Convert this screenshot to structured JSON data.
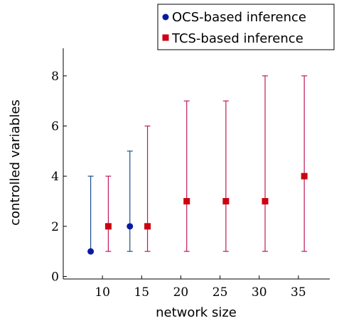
{
  "chart_data": {
    "type": "scatter",
    "xlabel": "network size",
    "ylabel": "controlled variables",
    "xlim": [
      5,
      39
    ],
    "ylim": [
      -0.1,
      9.1
    ],
    "x_ticks": [
      10,
      15,
      20,
      25,
      30,
      35
    ],
    "y_ticks": [
      0,
      2,
      4,
      6,
      8
    ],
    "grid": false,
    "legend_position": "top-right",
    "series": [
      {
        "name": "OCS-based inference",
        "marker": "circle",
        "color": "#0a1aa0",
        "bar_color": "#1f4e8c",
        "points": [
          {
            "x": 10,
            "y": 1,
            "min": 1,
            "max": 4
          },
          {
            "x": 15,
            "y": 2,
            "min": 1,
            "max": 5
          }
        ]
      },
      {
        "name": "TCS-based inference",
        "marker": "square",
        "color": "#cc0011",
        "bar_color": "#c2185b",
        "points": [
          {
            "x": 10,
            "y": 2,
            "min": 1,
            "max": 4
          },
          {
            "x": 15,
            "y": 2,
            "min": 1,
            "max": 6
          },
          {
            "x": 20,
            "y": 3,
            "min": 1,
            "max": 7
          },
          {
            "x": 25,
            "y": 3,
            "min": 1,
            "max": 7
          },
          {
            "x": 30,
            "y": 3,
            "min": 1,
            "max": 8
          },
          {
            "x": 35,
            "y": 4,
            "min": 1,
            "max": 8
          }
        ]
      }
    ]
  }
}
